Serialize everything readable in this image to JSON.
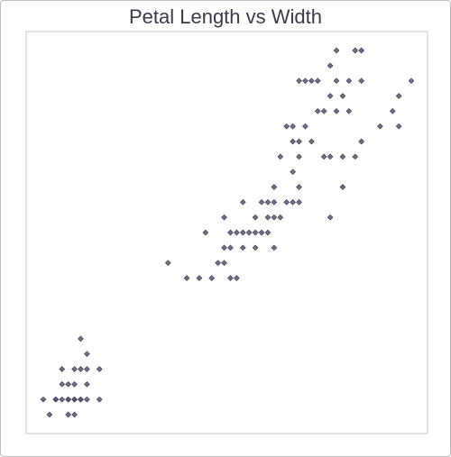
{
  "chart_data": {
    "type": "scatter",
    "title": "Petal Length vs Width",
    "xlabel": "",
    "ylabel": "",
    "grid": false,
    "xlim": [
      1.0,
      6.9
    ],
    "ylim": [
      0.1,
      2.5
    ],
    "marker_color": "#555570",
    "points": [
      [
        1.0,
        0.2
      ],
      [
        1.1,
        0.1
      ],
      [
        1.2,
        0.2
      ],
      [
        1.2,
        0.2
      ],
      [
        1.3,
        0.2
      ],
      [
        1.3,
        0.3
      ],
      [
        1.3,
        0.4
      ],
      [
        1.4,
        0.2
      ],
      [
        1.4,
        0.1
      ],
      [
        1.4,
        0.2
      ],
      [
        1.4,
        0.3
      ],
      [
        1.5,
        0.2
      ],
      [
        1.5,
        0.4
      ],
      [
        1.5,
        0.1
      ],
      [
        1.5,
        0.3
      ],
      [
        1.5,
        0.2
      ],
      [
        1.6,
        0.2
      ],
      [
        1.6,
        0.4
      ],
      [
        1.6,
        0.6
      ],
      [
        1.6,
        0.2
      ],
      [
        1.7,
        0.2
      ],
      [
        1.7,
        0.4
      ],
      [
        1.7,
        0.3
      ],
      [
        1.7,
        0.5
      ],
      [
        1.9,
        0.2
      ],
      [
        1.9,
        0.4
      ],
      [
        3.0,
        1.1
      ],
      [
        3.3,
        1.0
      ],
      [
        3.5,
        1.0
      ],
      [
        3.6,
        1.3
      ],
      [
        3.7,
        1.0
      ],
      [
        3.8,
        1.1
      ],
      [
        3.9,
        1.1
      ],
      [
        3.9,
        1.2
      ],
      [
        3.9,
        1.4
      ],
      [
        4.0,
        1.0
      ],
      [
        4.0,
        1.2
      ],
      [
        4.0,
        1.3
      ],
      [
        4.1,
        1.0
      ],
      [
        4.1,
        1.3
      ],
      [
        4.2,
        1.2
      ],
      [
        4.2,
        1.3
      ],
      [
        4.2,
        1.5
      ],
      [
        4.3,
        1.3
      ],
      [
        4.4,
        1.2
      ],
      [
        4.4,
        1.3
      ],
      [
        4.4,
        1.4
      ],
      [
        4.5,
        1.3
      ],
      [
        4.5,
        1.5
      ],
      [
        4.6,
        1.3
      ],
      [
        4.6,
        1.4
      ],
      [
        4.6,
        1.5
      ],
      [
        4.7,
        1.2
      ],
      [
        4.7,
        1.4
      ],
      [
        4.7,
        1.5
      ],
      [
        4.7,
        1.6
      ],
      [
        4.8,
        1.4
      ],
      [
        4.8,
        1.8
      ],
      [
        4.9,
        1.5
      ],
      [
        4.9,
        2.0
      ],
      [
        5.0,
        1.5
      ],
      [
        5.0,
        1.7
      ],
      [
        5.0,
        1.9
      ],
      [
        5.0,
        2.0
      ],
      [
        5.1,
        1.5
      ],
      [
        5.1,
        1.6
      ],
      [
        5.1,
        1.8
      ],
      [
        5.1,
        1.9
      ],
      [
        5.1,
        2.3
      ],
      [
        5.2,
        2.0
      ],
      [
        5.2,
        2.3
      ],
      [
        5.3,
        1.9
      ],
      [
        5.3,
        2.3
      ],
      [
        5.4,
        2.1
      ],
      [
        5.4,
        2.3
      ],
      [
        5.5,
        1.8
      ],
      [
        5.5,
        2.1
      ],
      [
        5.6,
        1.8
      ],
      [
        5.6,
        2.2
      ],
      [
        5.6,
        2.4
      ],
      [
        5.6,
        1.4
      ],
      [
        5.7,
        2.1
      ],
      [
        5.7,
        2.3
      ],
      [
        5.7,
        2.5
      ],
      [
        5.8,
        1.6
      ],
      [
        5.8,
        1.8
      ],
      [
        5.8,
        2.2
      ],
      [
        5.9,
        2.1
      ],
      [
        5.9,
        2.3
      ],
      [
        6.0,
        2.5
      ],
      [
        6.0,
        1.8
      ],
      [
        6.1,
        1.9
      ],
      [
        6.1,
        2.3
      ],
      [
        6.1,
        2.5
      ],
      [
        6.4,
        2.0
      ],
      [
        6.6,
        2.1
      ],
      [
        6.7,
        2.0
      ],
      [
        6.7,
        2.2
      ],
      [
        6.9,
        2.3
      ]
    ]
  }
}
